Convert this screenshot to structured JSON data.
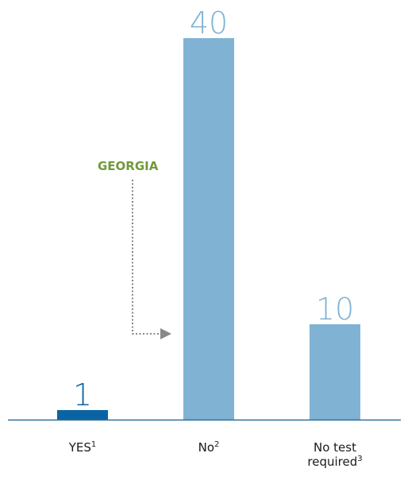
{
  "chart_data": {
    "type": "bar",
    "categories": [
      {
        "label": "YES",
        "sup": "1"
      },
      {
        "label": "No",
        "sup": "2"
      },
      {
        "label": "No test required",
        "line1": "No test",
        "line2": "required",
        "sup": "3"
      }
    ],
    "values": [
      1,
      40,
      10
    ],
    "value_labels": [
      "1",
      "40",
      "10"
    ],
    "bar_colors": [
      "#0a64a4",
      "#80b3d3",
      "#80b3d3"
    ],
    "value_label_colors": [
      "#0a64a4",
      "#80b3d3",
      "#80b3d3"
    ],
    "ylim": [
      0,
      40
    ],
    "grid": false,
    "title": "",
    "xlabel": "",
    "ylabel": "",
    "annotation": {
      "text": "GEORGIA",
      "color": "#6f9a3a",
      "points_to_category": "No"
    },
    "axis_color": "#2f6f99",
    "arrow_color": "#888888"
  }
}
